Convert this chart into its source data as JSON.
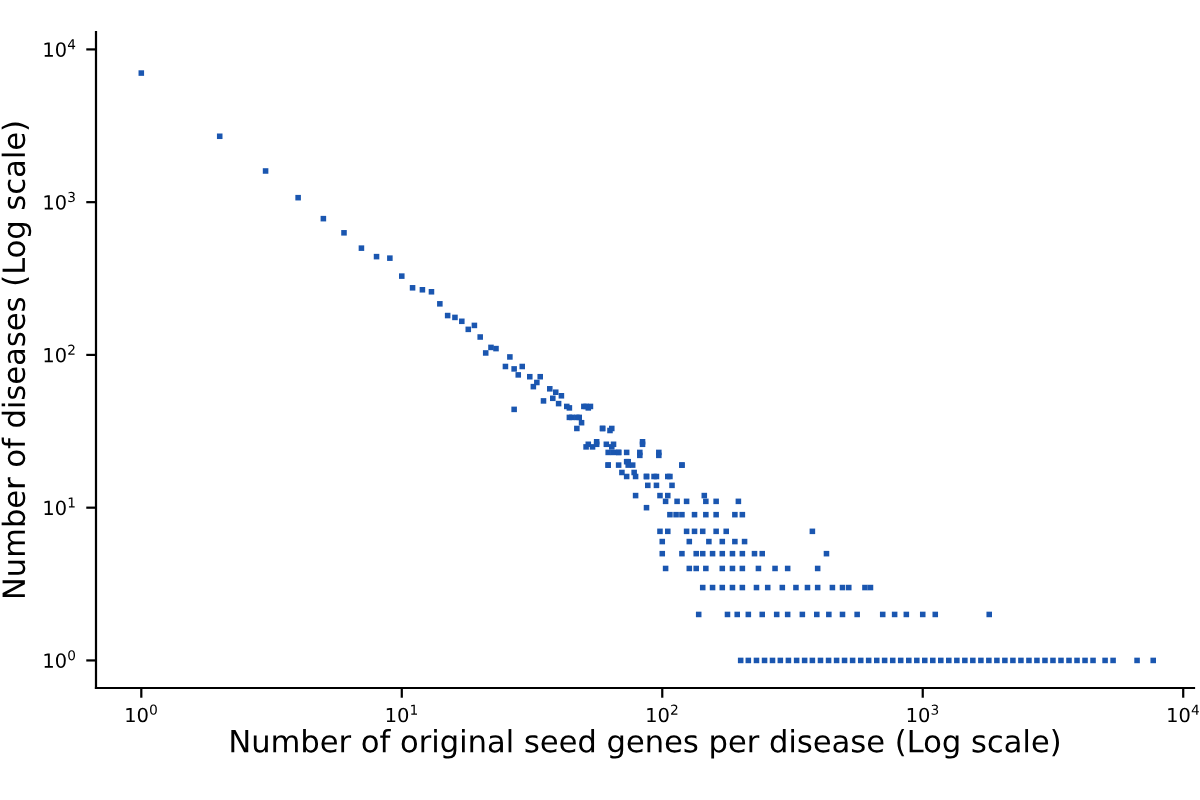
{
  "chart_data": {
    "type": "scatter",
    "log": "xy",
    "marker": "square",
    "grid": false,
    "legend": false,
    "xlabel": "Number of original seed genes per disease (Log scale)",
    "ylabel": "Number of diseases (Log scale)",
    "xlim": [
      0.67,
      11000
    ],
    "ylim": [
      0.66,
      13000
    ],
    "xticks": [
      {
        "value": 1,
        "label": "10$^{0}$"
      },
      {
        "value": 10,
        "label": "10$^{1}$"
      },
      {
        "value": 100,
        "label": "10$^{2}$"
      },
      {
        "value": 1000,
        "label": "10$^{3}$"
      },
      {
        "value": 10000,
        "label": "10$^{4}$"
      }
    ],
    "yticks": [
      {
        "value": 1,
        "label": "10$^{0}$"
      },
      {
        "value": 10,
        "label": "10$^{1}$"
      },
      {
        "value": 100,
        "label": "10$^{2}$"
      },
      {
        "value": 1000,
        "label": "10$^{3}$"
      },
      {
        "value": 10000,
        "label": "10$^{4}$"
      }
    ],
    "series": [
      {
        "color": "#1a56b0",
        "x": [
          1,
          2,
          3,
          4,
          5,
          6,
          7,
          8,
          9,
          10,
          11,
          12,
          13,
          14,
          15,
          16,
          17,
          18,
          19,
          20,
          21,
          22,
          23,
          25,
          26,
          27,
          27,
          28,
          29,
          31,
          32,
          33,
          34,
          35,
          37,
          38,
          39,
          40,
          41,
          44,
          45,
          47,
          47,
          49,
          50,
          52,
          51,
          54,
          56,
          59,
          62,
          63,
          64,
          65,
          68,
          70,
          73,
          74,
          77,
          78,
          82,
          84,
          87,
          93,
          97,
          105,
          119,
          43,
          51,
          53,
          44,
          48,
          59,
          64,
          52,
          56,
          61,
          65,
          84,
          62,
          68,
          73,
          82,
          97,
          62,
          68,
          74,
          119,
          73,
          79,
          87,
          95,
          107,
          88,
          95,
          109,
          79,
          98,
          105,
          145,
          103,
          114,
          124,
          147,
          161,
          196,
          87,
          107,
          113,
          119,
          133,
          147,
          161,
          190,
          203,
          98,
          105,
          124,
          133,
          143,
          161,
          176,
          377,
          100,
          127,
          151,
          170,
          190,
          207,
          100,
          119,
          135,
          143,
          156,
          170,
          186,
          203,
          226,
          242,
          427,
          103,
          127,
          135,
          147,
          170,
          186,
          203,
          234,
          271,
          303,
          395,
          143,
          156,
          170,
          186,
          203,
          230,
          254,
          289,
          326,
          361,
          395,
          450,
          492,
          520,
          600,
          630,
          138,
          178,
          194,
          214,
          242,
          275,
          303,
          345,
          392,
          436,
          492,
          560,
          702,
          780,
          865,
          1000,
          1117,
          1800,
          200,
          214,
          230,
          247,
          265,
          284,
          305,
          328,
          352,
          377,
          405,
          435,
          467,
          501,
          538,
          578,
          620,
          666,
          714,
          767,
          823,
          884,
          949,
          1018,
          1093,
          1173,
          1259,
          1352,
          1451,
          1557,
          1672,
          1794,
          1926,
          2067,
          2219,
          2382,
          2557,
          2744,
          2946,
          3162,
          3394,
          3643,
          3911,
          4198,
          4506,
          5012,
          5380,
          6650,
          7670
        ],
        "values": [
          7000,
          2700,
          1600,
          1070,
          780,
          630,
          500,
          440,
          430,
          328,
          275,
          267,
          259,
          216,
          181,
          176,
          166,
          147,
          156,
          131,
          103,
          112,
          110,
          84,
          97,
          81,
          44,
          74,
          84,
          72,
          62,
          66,
          72,
          50,
          60,
          52,
          57,
          48,
          54,
          45,
          39,
          39,
          33,
          36,
          46,
          45,
          25,
          25,
          27,
          33,
          19,
          32,
          25,
          23,
          23,
          17,
          20,
          20,
          19,
          17,
          22,
          27,
          16,
          16,
          22,
          16,
          19,
          46,
          46,
          46,
          39,
          39,
          33,
          33,
          26,
          26,
          26,
          26,
          26,
          23,
          23,
          23,
          23,
          23,
          19,
          19,
          19,
          19,
          16,
          16,
          16,
          16,
          16,
          14,
          14,
          14,
          12,
          12,
          12,
          12,
          11,
          11,
          11,
          11,
          11,
          11,
          10,
          9,
          9,
          9,
          9,
          9,
          9,
          9,
          9,
          7,
          7,
          7,
          7,
          7,
          7,
          7,
          7,
          6,
          6,
          6,
          6,
          6,
          6,
          5,
          5,
          5,
          5,
          5,
          5,
          5,
          5,
          5,
          5,
          5,
          4,
          4,
          4,
          4,
          4,
          4,
          4,
          4,
          4,
          4,
          4,
          3,
          3,
          3,
          3,
          3,
          3,
          3,
          3,
          3,
          3,
          3,
          3,
          3,
          3,
          3,
          3,
          2,
          2,
          2,
          2,
          2,
          2,
          2,
          2,
          2,
          2,
          2,
          2,
          2,
          2,
          2,
          2,
          2,
          2,
          1,
          1,
          1,
          1,
          1,
          1,
          1,
          1,
          1,
          1,
          1,
          1,
          1,
          1,
          1,
          1,
          1,
          1,
          1,
          1,
          1,
          1,
          1,
          1,
          1,
          1,
          1,
          1,
          1,
          1,
          1,
          1,
          1,
          1,
          1,
          1,
          1,
          1,
          1,
          1,
          1,
          1,
          1,
          1,
          1,
          1,
          1,
          1,
          1
        ]
      }
    ]
  }
}
